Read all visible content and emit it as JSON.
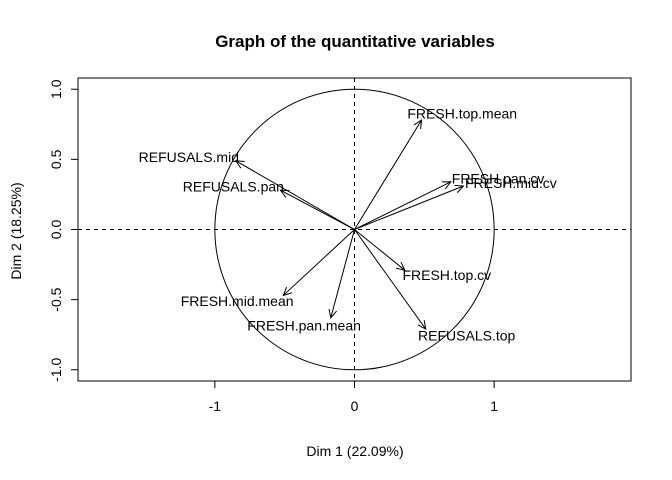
{
  "chart_data": {
    "type": "scatter",
    "title": "Graph of the quantitative variables",
    "xlabel": "Dim 1 (22.09%)",
    "ylabel": "Dim 2 (18.25%)",
    "xlim": [
      -1.98,
      1.98
    ],
    "ylim": [
      -1.08,
      1.08
    ],
    "x_ticks": [
      -1,
      0,
      1
    ],
    "y_ticks": [
      -1.0,
      -0.5,
      0.0,
      0.5,
      1.0
    ],
    "x_tick_labels": [
      "-1",
      "0",
      "1"
    ],
    "y_tick_labels": [
      "-1.0",
      "-0.5",
      "0.0",
      "0.5",
      "1.0"
    ],
    "unit_circle": true,
    "reference_lines": [
      0
    ],
    "legend": "none",
    "variables": [
      {
        "name": "FRESH.top.mean",
        "x": 0.48,
        "y": 0.78
      },
      {
        "name": "FRESH.pan.cv",
        "x": 0.69,
        "y": 0.34
      },
      {
        "name": "FRESH.mid.cv",
        "x": 0.78,
        "y": 0.31
      },
      {
        "name": "REFUSALS.mid",
        "x": -0.85,
        "y": 0.49
      },
      {
        "name": "REFUSALS.pan",
        "x": -0.53,
        "y": 0.28
      },
      {
        "name": "FRESH.top.cv",
        "x": 0.36,
        "y": -0.29
      },
      {
        "name": "FRESH.mid.mean",
        "x": -0.51,
        "y": -0.47
      },
      {
        "name": "FRESH.pan.mean",
        "x": -0.17,
        "y": -0.63
      },
      {
        "name": "REFUSALS.top",
        "x": 0.51,
        "y": -0.71
      }
    ]
  }
}
